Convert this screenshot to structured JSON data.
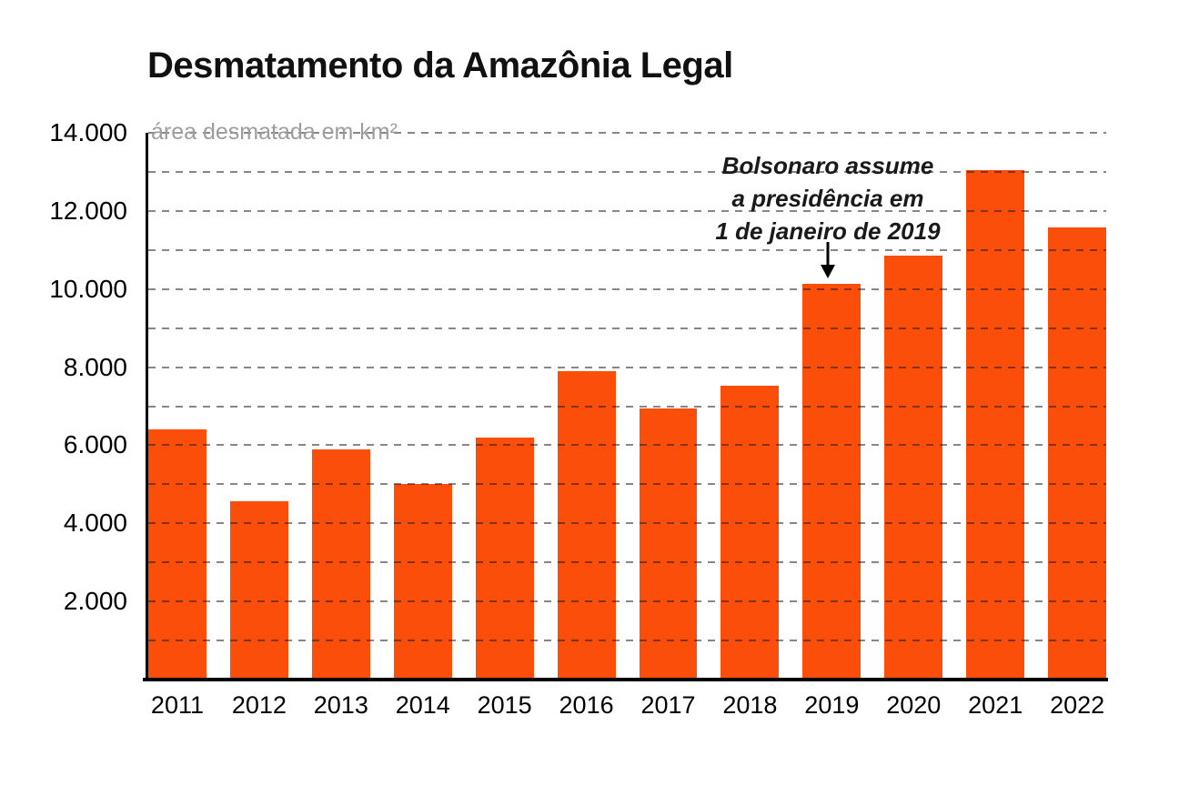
{
  "title": "Desmatamento da Amazônia Legal",
  "axis_unit_label": "área desmatada em km²",
  "annotation": {
    "lines": [
      "Bolsonaro assume",
      "a presidência em",
      "1 de janeiro de 2019"
    ],
    "target_category": "2019",
    "arrow": "down-arrow"
  },
  "colors": {
    "bar": "#FB4E0A",
    "gridline": "rgba(25,25,25,0.52)",
    "axis": "#000000",
    "title": "#111111",
    "axis_unit_label": "#9D9D9D",
    "background": "#FFFFFF"
  },
  "chart_data": {
    "type": "bar",
    "title": "Desmatamento da Amazônia Legal",
    "ylabel": "área desmatada em km²",
    "xlabel": "",
    "categories": [
      "2011",
      "2012",
      "2013",
      "2014",
      "2015",
      "2016",
      "2017",
      "2018",
      "2019",
      "2020",
      "2021",
      "2022"
    ],
    "values": [
      6418,
      4571,
      5891,
      5012,
      6207,
      7893,
      6947,
      7536,
      10129,
      10851,
      13038,
      11568
    ],
    "ylim": [
      0,
      14000
    ],
    "grid": true,
    "grid_step": 1000,
    "ytick_label_step": 2000,
    "ytick_labels": [
      "2.000",
      "4.000",
      "6.000",
      "8.000",
      "10.000",
      "12.000",
      "14.000"
    ],
    "legend": false,
    "annotation_text": "Bolsonaro assume a presidência em 1 de janeiro de 2019"
  }
}
